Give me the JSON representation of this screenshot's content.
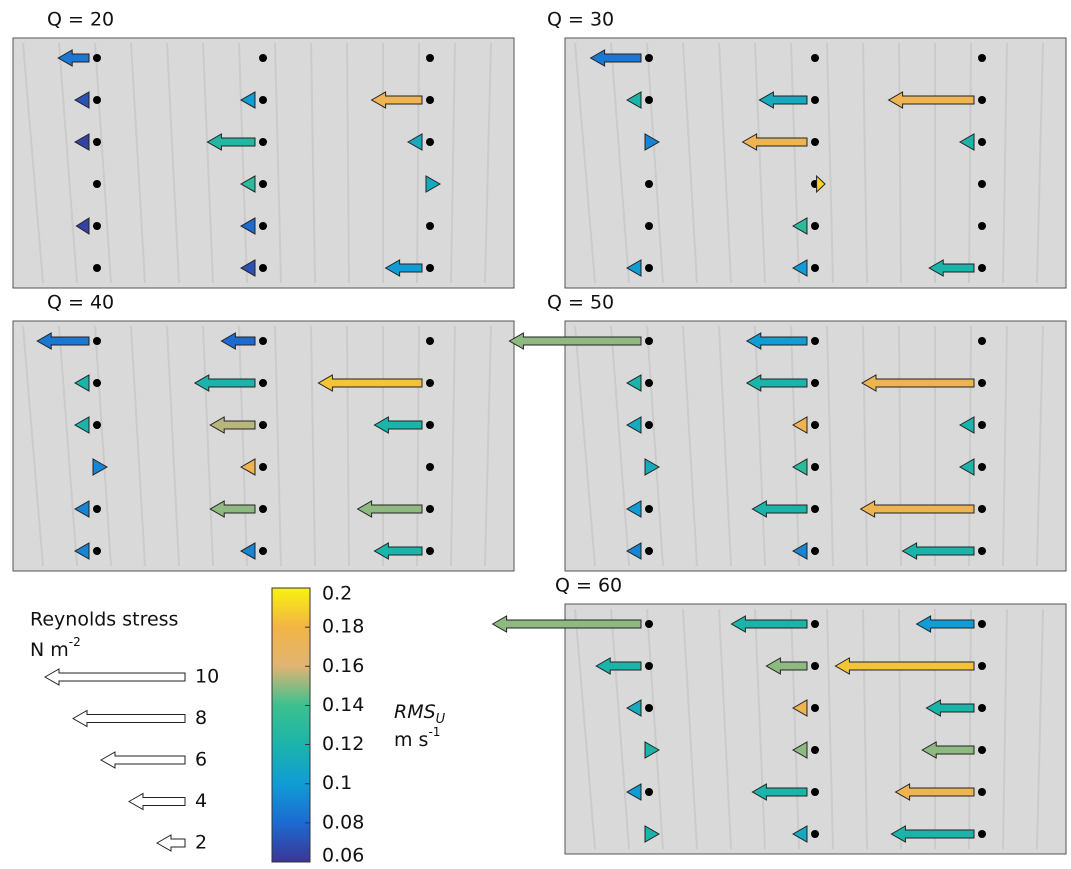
{
  "chart_data": [
    {
      "type": "arrow-map",
      "title": "Q = 20",
      "stress": [
        [
          2.2,
          null,
          null
        ],
        [
          1.0,
          1.0,
          3.6
        ],
        [
          1.0,
          3.4,
          1.0
        ],
        [
          null,
          1.0,
          -1.0
        ],
        [
          0.9,
          1.0,
          null
        ],
        [
          null,
          1.0,
          2.6
        ]
      ],
      "rms": [
        [
          0.085,
          null,
          null
        ],
        [
          0.07,
          0.1,
          0.175
        ],
        [
          0.065,
          0.125,
          0.11
        ],
        [
          null,
          0.13,
          0.11
        ],
        [
          0.065,
          0.08,
          null
        ],
        [
          null,
          0.07,
          0.1
        ]
      ]
    },
    {
      "type": "arrow-map",
      "title": "Q = 30",
      "stress": [
        [
          3.6,
          null,
          null
        ],
        [
          1.0,
          3.4,
          6.1
        ],
        [
          -1.0,
          4.6,
          1.0
        ],
        [
          null,
          -0.6,
          null
        ],
        [
          null,
          1.0,
          null
        ],
        [
          1.0,
          1.0,
          3.2
        ]
      ],
      "rms": [
        [
          0.085,
          null,
          null
        ],
        [
          0.12,
          0.11,
          0.175
        ],
        [
          0.09,
          0.175,
          0.12
        ],
        [
          null,
          0.19,
          null
        ],
        [
          null,
          0.13,
          null
        ],
        [
          0.1,
          0.1,
          0.12
        ]
      ]
    },
    {
      "type": "arrow-map",
      "title": "Q = 40",
      "stress": [
        [
          3.7,
          2.4,
          null
        ],
        [
          1.0,
          4.3,
          7.4
        ],
        [
          1.0,
          3.2,
          3.4
        ],
        [
          -1.0,
          1.0,
          null
        ],
        [
          1.0,
          3.2,
          4.6
        ],
        [
          1.0,
          1.0,
          3.4
        ]
      ],
      "rms": [
        [
          0.085,
          0.08,
          null
        ],
        [
          0.12,
          0.12,
          0.185
        ],
        [
          0.12,
          0.155,
          0.12
        ],
        [
          0.09,
          0.175,
          null
        ],
        [
          0.09,
          0.15,
          0.15
        ],
        [
          0.09,
          0.09,
          0.12
        ]
      ]
    },
    {
      "type": "arrow-map",
      "title": "Q = 50",
      "stress": [
        [
          9.4,
          4.3,
          null
        ],
        [
          1.0,
          4.3,
          8.0
        ],
        [
          1.0,
          1.0,
          1.0
        ],
        [
          -1.0,
          1.0,
          1.0
        ],
        [
          1.0,
          3.9,
          8.1
        ],
        [
          1.0,
          1.0,
          5.1
        ]
      ],
      "rms": [
        [
          0.15,
          0.1,
          null
        ],
        [
          0.12,
          0.12,
          0.175
        ],
        [
          0.11,
          0.175,
          0.12
        ],
        [
          0.11,
          0.13,
          0.12
        ],
        [
          0.1,
          0.12,
          0.175
        ],
        [
          0.09,
          0.09,
          0.12
        ]
      ]
    },
    {
      "type": "arrow-map",
      "title": "Q = 60",
      "stress": [
        [
          10.6,
          5.4,
          4.1
        ],
        [
          3.2,
          2.9,
          9.9
        ],
        [
          1.0,
          1.0,
          3.4
        ],
        [
          -1.0,
          1.0,
          3.7
        ],
        [
          1.0,
          3.9,
          5.6
        ],
        [
          -1.0,
          1.0,
          5.9
        ]
      ],
      "rms": [
        [
          0.15,
          0.12,
          0.1
        ],
        [
          0.12,
          0.15,
          0.185
        ],
        [
          0.11,
          0.175,
          0.12
        ],
        [
          0.12,
          0.15,
          0.15
        ],
        [
          0.1,
          0.12,
          0.175
        ],
        [
          0.12,
          0.11,
          0.12
        ]
      ]
    }
  ],
  "legend": {
    "title": "Reynolds stress",
    "unit": {
      "text": "N m",
      "sup": "-2"
    },
    "values": [
      10,
      8,
      6,
      4,
      2
    ]
  },
  "colorbar": {
    "label": {
      "text": "RMS",
      "sub": "U"
    },
    "unit": {
      "text": "m s",
      "sup": "-1"
    },
    "clim": [
      0.06,
      0.2
    ],
    "ticks": [
      0.2,
      0.18,
      0.16,
      0.14,
      0.12,
      0.1,
      0.08,
      0.06
    ],
    "colormap": [
      "#3b3694",
      "#1d6ad2",
      "#109dd5",
      "#1bb4aa",
      "#3cc08e",
      "#e0b474",
      "#f2b445",
      "#f9f20e"
    ]
  }
}
